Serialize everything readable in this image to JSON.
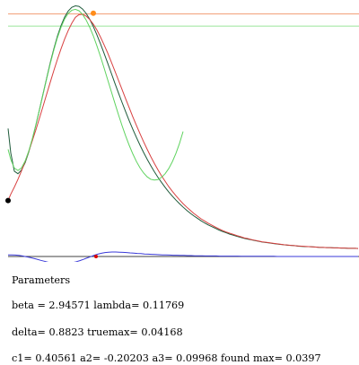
{
  "chart_data": {
    "type": "line",
    "xlim": [
      0,
      400
    ],
    "ylim": [
      0,
      1
    ],
    "grid": false,
    "reference_lines": [
      {
        "name": "found max",
        "y": 0.965,
        "color": "#f2a07a"
      },
      {
        "name": "true max",
        "y": 0.915,
        "color": "#9be59b"
      }
    ],
    "series": [
      {
        "color": "#1e5a3a",
        "x": [
          9,
          12,
          16,
          20,
          24,
          28,
          32,
          36,
          40,
          44,
          48,
          52,
          56,
          60,
          64,
          68,
          72,
          76,
          80,
          84,
          88,
          92,
          96,
          100,
          104,
          108,
          112,
          116,
          120,
          124,
          128,
          132,
          136,
          140,
          144,
          148,
          152,
          156,
          160,
          164,
          168,
          172,
          176,
          180,
          184,
          188,
          192,
          196,
          200,
          204,
          208,
          212,
          216,
          220,
          224,
          228,
          232,
          236,
          240,
          244,
          248,
          252,
          256,
          260,
          264,
          268,
          272,
          276,
          280,
          284,
          288,
          292,
          296,
          300,
          304,
          308,
          312,
          316,
          320,
          324,
          328,
          332,
          336,
          340,
          344,
          348,
          352,
          356,
          360,
          364,
          368,
          372,
          376,
          380,
          384,
          388,
          392,
          396,
          399
        ],
        "y": [
          0.495,
          0.395,
          0.32,
          0.31,
          0.325,
          0.355,
          0.398,
          0.451,
          0.51,
          0.573,
          0.638,
          0.702,
          0.765,
          0.822,
          0.874,
          0.917,
          0.952,
          0.977,
          0.992,
          0.998,
          0.996,
          0.985,
          0.967,
          0.943,
          0.913,
          0.879,
          0.842,
          0.803,
          0.763,
          0.722,
          0.681,
          0.641,
          0.602,
          0.564,
          0.527,
          0.492,
          0.459,
          0.427,
          0.397,
          0.369,
          0.343,
          0.318,
          0.295,
          0.274,
          0.254,
          0.235,
          0.218,
          0.202,
          0.187,
          0.173,
          0.16,
          0.148,
          0.137,
          0.127,
          0.117,
          0.108,
          0.1,
          0.093,
          0.086,
          0.079,
          0.073,
          0.068,
          0.062,
          0.058,
          0.053,
          0.049,
          0.045,
          0.042,
          0.039,
          0.036,
          0.033,
          0.03,
          0.028,
          0.026,
          0.024,
          0.022,
          0.02,
          0.019,
          0.017,
          0.016,
          0.015,
          0.013,
          0.012,
          0.011,
          0.011,
          0.01,
          0.009,
          0.008,
          0.008,
          0.007,
          0.007,
          0.006,
          0.006,
          0.005,
          0.005,
          0.004,
          0.004,
          0.004,
          0.003
        ]
      },
      {
        "color": "#d84040",
        "x": [
          9,
          12,
          16,
          20,
          24,
          28,
          32,
          36,
          40,
          44,
          48,
          52,
          56,
          60,
          64,
          68,
          72,
          76,
          80,
          84,
          88,
          92,
          96,
          100,
          104,
          108,
          112,
          116,
          120,
          124,
          128,
          132,
          136,
          140,
          144,
          148,
          152,
          156,
          160,
          164,
          168,
          172,
          176,
          180,
          184,
          188,
          192,
          196,
          200,
          204,
          208,
          212,
          216,
          220,
          224,
          228,
          232,
          236,
          240,
          244,
          248,
          252,
          256,
          260,
          264,
          268,
          272,
          276,
          280,
          284,
          288,
          292,
          296,
          300,
          304,
          308,
          312,
          316,
          320,
          324,
          328,
          332,
          336,
          340,
          344,
          348,
          352,
          356,
          360,
          364,
          368,
          372,
          376,
          380,
          384,
          388,
          392,
          396,
          399
        ],
        "y": [
          0.2,
          0.226,
          0.255,
          0.287,
          0.322,
          0.36,
          0.401,
          0.445,
          0.49,
          0.538,
          0.587,
          0.636,
          0.685,
          0.733,
          0.779,
          0.822,
          0.862,
          0.897,
          0.927,
          0.951,
          0.962,
          0.963,
          0.956,
          0.942,
          0.923,
          0.899,
          0.87,
          0.838,
          0.805,
          0.768,
          0.731,
          0.693,
          0.655,
          0.617,
          0.58,
          0.543,
          0.508,
          0.474,
          0.441,
          0.41,
          0.38,
          0.352,
          0.326,
          0.301,
          0.279,
          0.257,
          0.238,
          0.22,
          0.203,
          0.187,
          0.173,
          0.16,
          0.147,
          0.136,
          0.125,
          0.116,
          0.107,
          0.099,
          0.091,
          0.084,
          0.077,
          0.071,
          0.066,
          0.061,
          0.056,
          0.052,
          0.047,
          0.044,
          0.04,
          0.037,
          0.034,
          0.031,
          0.029,
          0.027,
          0.025,
          0.023,
          0.021,
          0.019,
          0.018,
          0.016,
          0.015,
          0.014,
          0.013,
          0.012,
          0.011,
          0.01,
          0.009,
          0.008,
          0.008,
          0.007,
          0.007,
          0.006,
          0.006,
          0.005,
          0.005,
          0.004,
          0.004,
          0.004,
          0.003
        ]
      },
      {
        "color": "#5fd35f",
        "x": [
          9,
          12,
          16,
          20,
          24,
          28,
          32,
          36,
          40,
          44,
          48,
          52,
          56,
          60,
          64,
          68,
          72,
          76,
          80,
          84,
          88,
          92,
          96,
          100,
          104,
          108,
          112,
          116,
          120,
          124,
          128,
          132,
          136,
          140,
          144,
          148,
          152,
          156,
          160,
          164,
          168,
          172,
          176,
          180,
          184,
          188,
          192,
          196,
          200,
          204
        ],
        "y": [
          0.41,
          0.368,
          0.333,
          0.323,
          0.334,
          0.362,
          0.402,
          0.453,
          0.51,
          0.572,
          0.636,
          0.699,
          0.761,
          0.817,
          0.868,
          0.91,
          0.944,
          0.967,
          0.98,
          0.984,
          0.978,
          0.963,
          0.94,
          0.91,
          0.875,
          0.834,
          0.79,
          0.743,
          0.695,
          0.647,
          0.599,
          0.552,
          0.507,
          0.465,
          0.426,
          0.391,
          0.36,
          0.334,
          0.313,
          0.297,
          0.287,
          0.284,
          0.286,
          0.295,
          0.31,
          0.331,
          0.359,
          0.393,
          0.434,
          0.483
        ]
      },
      {
        "color": "#3a3ad8",
        "x": [
          9,
          13,
          17,
          21,
          25,
          29,
          33,
          37,
          41,
          45,
          49,
          53,
          57,
          61,
          65,
          69,
          73,
          77,
          81,
          85,
          89,
          93,
          97,
          101,
          105,
          109,
          113,
          117,
          121,
          125,
          129,
          133,
          137,
          141,
          145,
          149,
          153,
          157,
          161,
          165,
          169,
          173,
          177,
          181,
          185,
          189,
          193,
          197,
          201,
          205,
          209,
          213,
          217,
          221,
          225,
          229,
          233,
          237,
          241,
          245,
          249,
          253,
          257,
          261,
          265,
          269,
          273,
          277,
          281,
          285,
          289,
          293,
          297,
          301,
          305,
          309,
          313,
          317,
          321,
          325,
          329,
          333,
          337,
          341,
          345,
          349,
          353,
          357,
          361,
          365,
          369,
          373,
          377,
          381,
          385,
          389,
          393,
          397,
          399
        ],
        "y": [
          0.009,
          0.009,
          0.008,
          0.006,
          0.003,
          -0.001,
          -0.005,
          -0.01,
          -0.015,
          -0.021,
          -0.026,
          -0.031,
          -0.035,
          -0.038,
          -0.04,
          -0.041,
          -0.04,
          -0.038,
          -0.034,
          -0.029,
          -0.023,
          -0.016,
          -0.008,
          -0.001,
          0.007,
          0.013,
          0.018,
          0.022,
          0.024,
          0.025,
          0.025,
          0.024,
          0.023,
          0.022,
          0.02,
          0.019,
          0.017,
          0.016,
          0.014,
          0.013,
          0.012,
          0.011,
          0.01,
          0.009,
          0.009,
          0.008,
          0.007,
          0.007,
          0.006,
          0.006,
          0.005,
          0.005,
          0.004,
          0.004,
          0.004,
          0.003,
          0.003,
          0.003,
          0.003,
          0.002,
          0.002,
          0.002,
          0.002,
          0.002,
          0.002,
          0.001,
          0.001,
          0.001,
          0.001,
          0.001,
          0.001,
          0.001,
          0.001,
          0.001,
          0.001,
          0.0,
          0.0,
          0.0,
          0.0,
          0.0,
          0.0,
          0.0,
          0.0,
          0.0,
          0.0,
          0.0,
          0.0,
          0.0,
          0.0,
          0.0,
          0.0,
          0.0,
          0.0,
          0.0,
          0.0,
          0.0,
          0.0,
          0.0,
          0.0
        ]
      }
    ],
    "markers": [
      {
        "x": 9,
        "y": 0.2,
        "color": "#000000",
        "series": "upper"
      },
      {
        "x": 104,
        "y": 0.968,
        "color": "#ff8c1a",
        "series": "upper"
      },
      {
        "x": 107,
        "y": 0.0,
        "color": "#dd0000",
        "series": "lower"
      }
    ]
  },
  "params": {
    "title": "Parameters",
    "line1": "beta = 2.94571 lambda= 0.11769",
    "line2": "delta= 0.8823 truemax= 0.04168",
    "line3": "c1= 0.40561 a2= -0.20203 a3= 0.09968 found max= 0.0397"
  }
}
